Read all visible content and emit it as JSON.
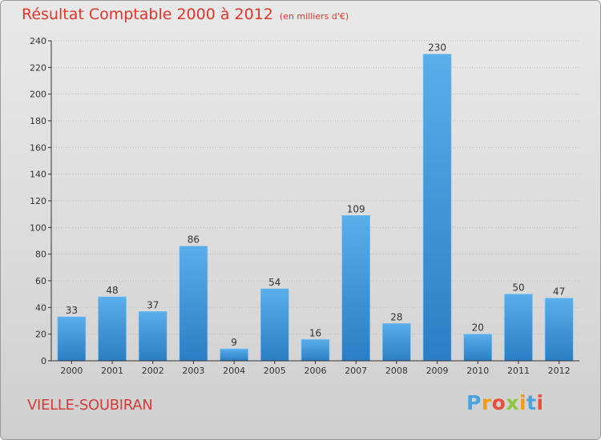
{
  "chart_data": {
    "type": "bar",
    "title": "Résultat Comptable 2000 à 2012",
    "subtitle": "(en milliers d'€)",
    "categories": [
      "2000",
      "2001",
      "2002",
      "2003",
      "2004",
      "2005",
      "2006",
      "2007",
      "2008",
      "2009",
      "2010",
      "2011",
      "2012"
    ],
    "values": [
      33,
      48,
      37,
      86,
      9,
      54,
      16,
      109,
      28,
      230,
      20,
      50,
      47
    ],
    "ylim": [
      0,
      240
    ],
    "yticks": [
      0,
      20,
      40,
      60,
      80,
      100,
      120,
      140,
      160,
      180,
      200,
      220,
      240
    ],
    "xlabel": "",
    "ylabel": "",
    "bar_color_top": "#5aaeea",
    "bar_color_bottom": "#2a7ec4"
  },
  "footer": {
    "town": "VIELLE-SOUBIRAN",
    "brand": "Proxiti",
    "brand_letters": [
      "P",
      "r",
      "o",
      "x",
      "i",
      "t",
      "i"
    ],
    "brand_colors": [
      "#4aa3df",
      "#f39c12",
      "#e94e3c",
      "#8cc63f",
      "#f39c12",
      "#4aa3df",
      "#e94e3c"
    ]
  }
}
